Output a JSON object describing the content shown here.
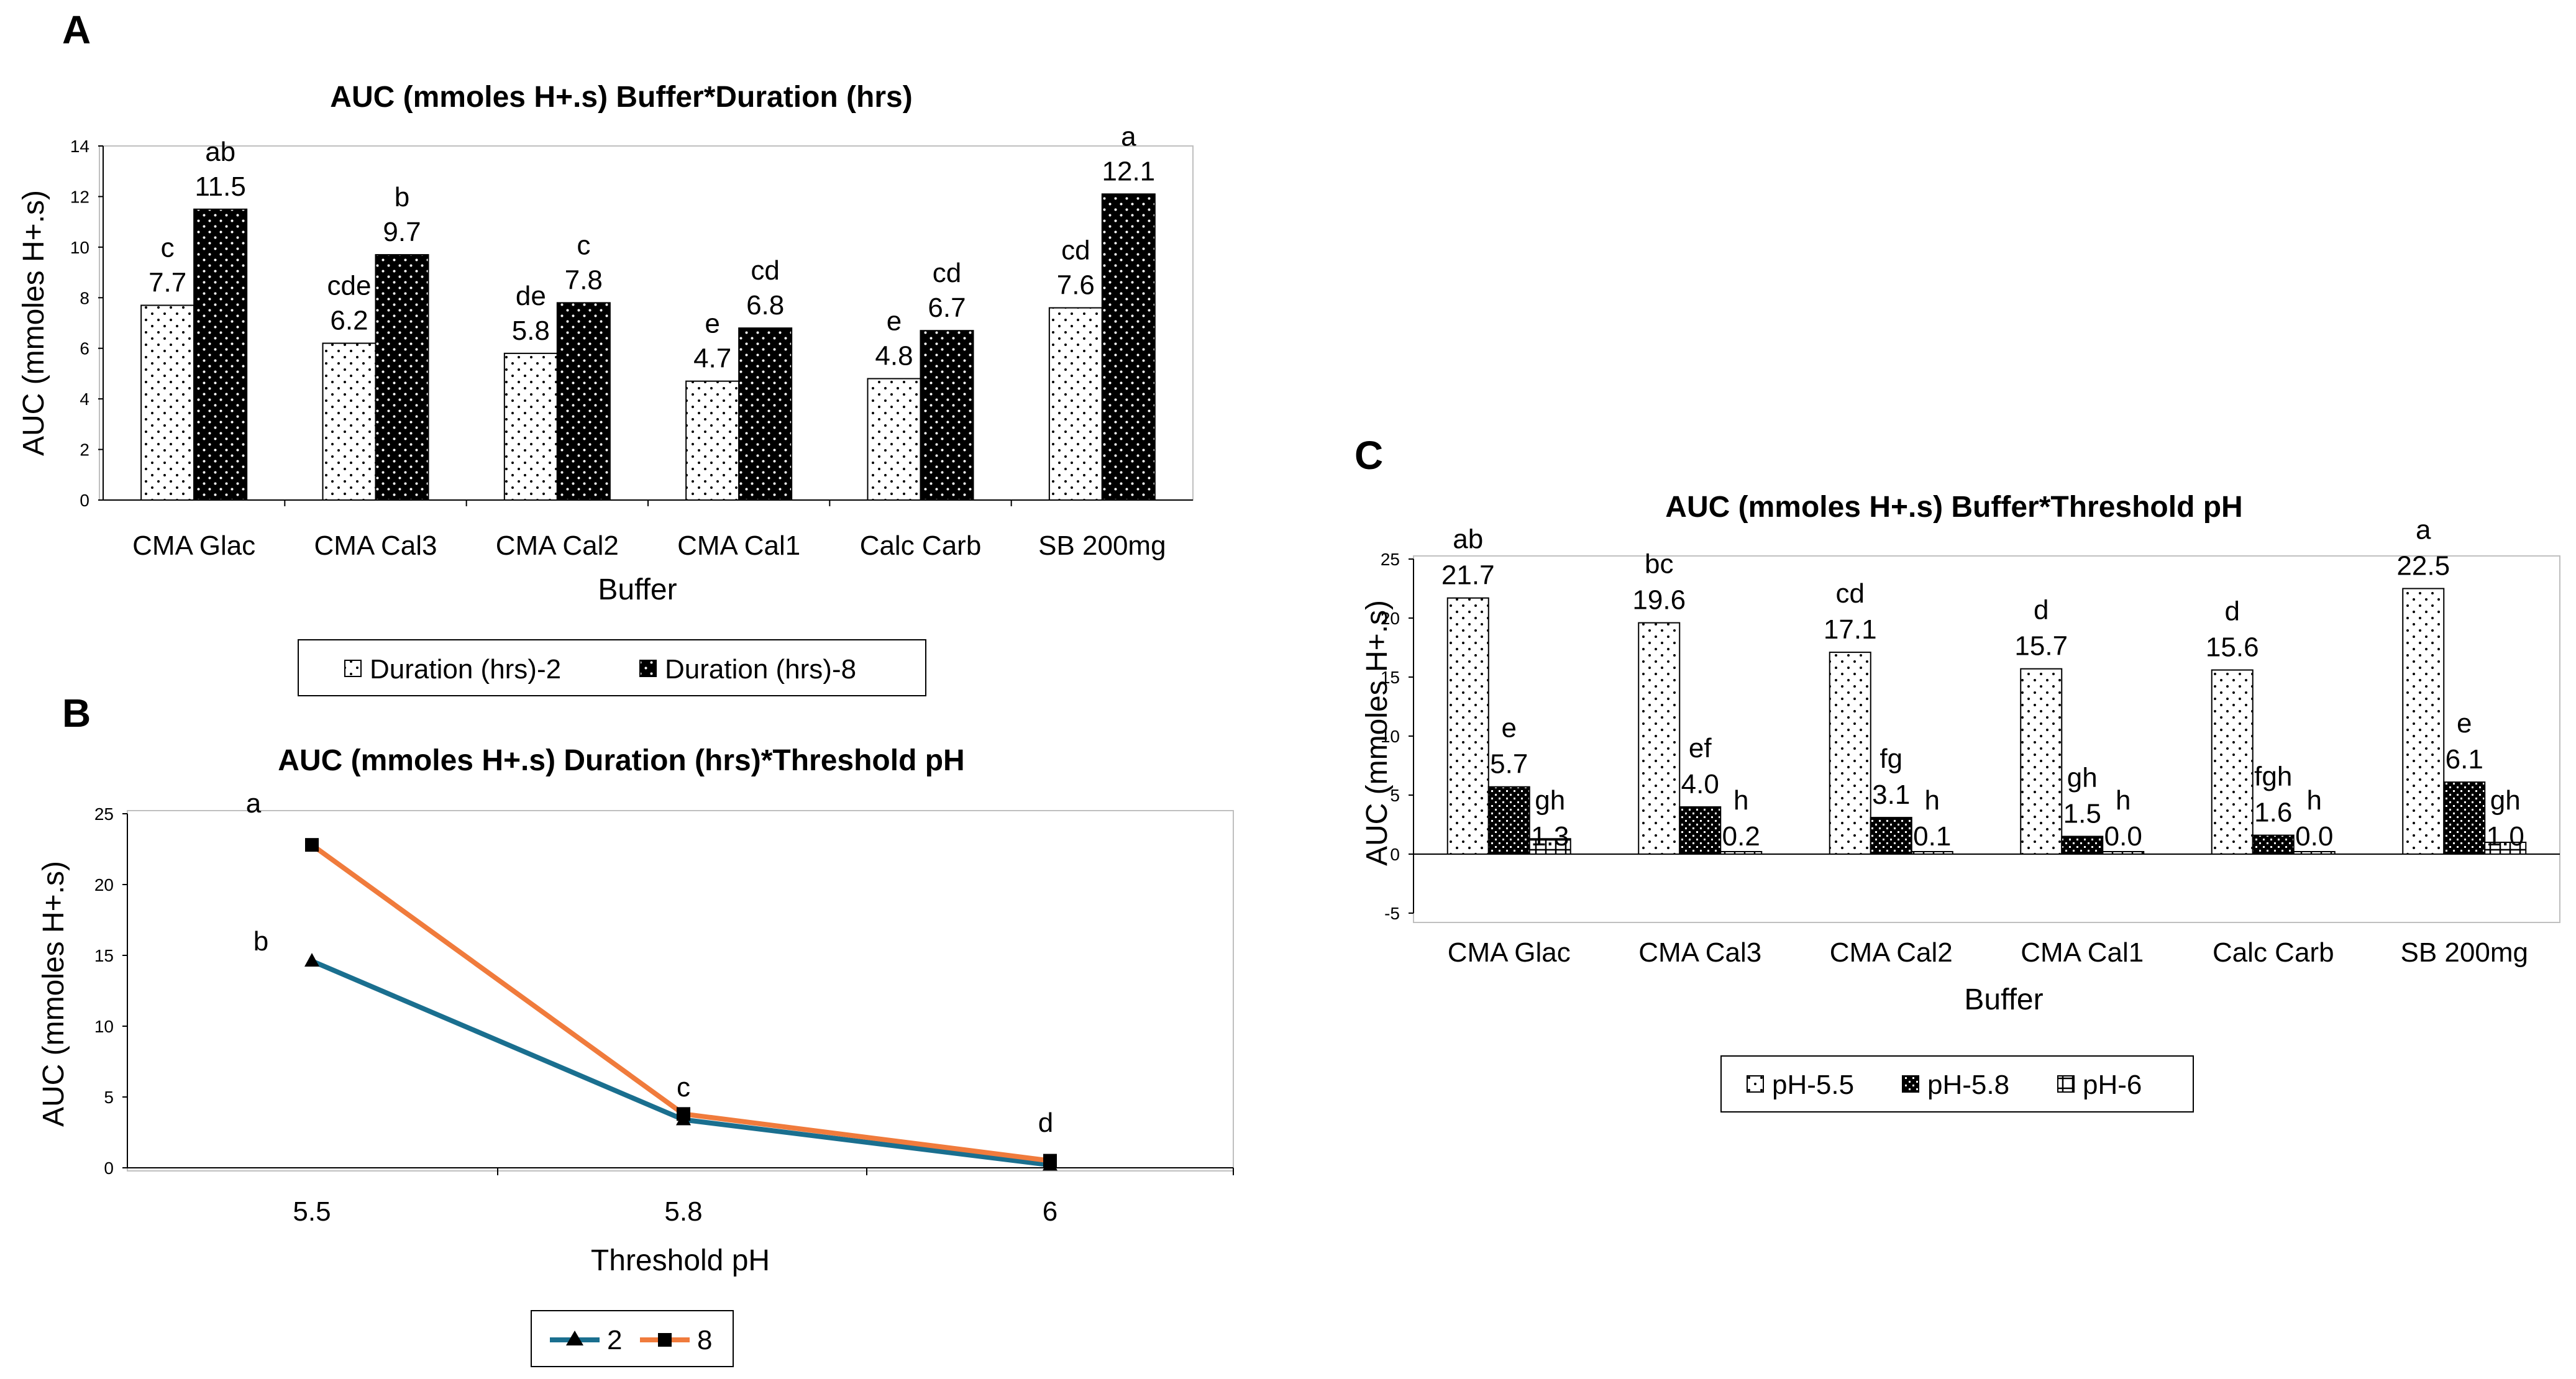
{
  "panels": {
    "a": "A",
    "b": "B",
    "c": "C"
  },
  "colors": {
    "series2h": "#1a6f8f",
    "series8h": "#f07b3c",
    "black": "#000000",
    "white": "#ffffff"
  },
  "chart_data": [
    {
      "id": "A",
      "type": "bar",
      "title": "AUC (mmoles H+.s) Buffer*Duration (hrs)",
      "xlabel": "Buffer",
      "ylabel": "AUC (mmoles H+.s)",
      "ylim": [
        0,
        14
      ],
      "yticks": [
        "0",
        "2",
        "4",
        "6",
        "8",
        "10",
        "12",
        "14"
      ],
      "categories": [
        "CMA Glac",
        "CMA Cal3",
        "CMA Cal2",
        "CMA Cal1",
        "Calc Carb",
        "SB 200mg"
      ],
      "series": [
        {
          "name": "Duration (hrs)-2",
          "pattern": "dots",
          "values": [
            7.7,
            6.2,
            5.8,
            4.7,
            4.8,
            7.6
          ],
          "labels": [
            "7.7",
            "6.2",
            "5.8",
            "4.7",
            "4.8",
            "7.6"
          ],
          "letters": [
            "c",
            "cde",
            "de",
            "e",
            "e",
            "cd"
          ]
        },
        {
          "name": "Duration (hrs)-8",
          "pattern": "solid-dots",
          "values": [
            11.5,
            9.7,
            7.8,
            6.8,
            6.7,
            12.1
          ],
          "labels": [
            "11.5",
            "9.7",
            "7.8",
            "6.8",
            "6.7",
            "12.1"
          ],
          "letters": [
            "ab",
            "b",
            "c",
            "cd",
            "cd",
            "a"
          ]
        }
      ]
    },
    {
      "id": "B",
      "type": "line",
      "title": "AUC (mmoles H+.s) Duration (hrs)*Threshold pH",
      "xlabel": "Threshold pH",
      "ylabel": "AUC (mmoles H+.s)",
      "ylim": [
        0,
        25
      ],
      "yticks": [
        "0",
        "5",
        "10",
        "15",
        "20",
        "25"
      ],
      "categories": [
        "5.5",
        "5.8",
        "6"
      ],
      "series": [
        {
          "name": "2",
          "marker": "triangle",
          "values": [
            14.6,
            3.4,
            0.2
          ]
        },
        {
          "name": "8",
          "marker": "square",
          "values": [
            22.8,
            3.8,
            0.5
          ]
        }
      ],
      "annotations": [
        "a",
        "b",
        "c",
        "d"
      ]
    },
    {
      "id": "C",
      "type": "bar",
      "title": "AUC (mmoles H+.s) Buffer*Threshold pH",
      "xlabel": "Buffer",
      "ylabel": "AUC (mmoles H+.s)",
      "ylim": [
        -5,
        25
      ],
      "yticks": [
        "-5",
        "0",
        "5",
        "10",
        "15",
        "20",
        "25"
      ],
      "categories": [
        "CMA Glac",
        "CMA Cal3",
        "CMA Cal2",
        "CMA Cal1",
        "Calc Carb",
        "SB 200mg"
      ],
      "series": [
        {
          "name": "pH-5.5",
          "pattern": "dots",
          "values": [
            21.7,
            19.6,
            17.1,
            15.7,
            15.6,
            22.5
          ],
          "labels": [
            "21.7",
            "19.6",
            "17.1",
            "15.7",
            "15.6",
            "22.5"
          ],
          "letters": [
            "ab",
            "bc",
            "cd",
            "d",
            "d",
            "a"
          ]
        },
        {
          "name": "pH-5.8",
          "pattern": "checker",
          "values": [
            5.7,
            4.0,
            3.1,
            1.5,
            1.6,
            6.1
          ],
          "labels": [
            "5.7",
            "4.0",
            "3.1",
            "1.5",
            "1.6",
            "6.1"
          ],
          "letters": [
            "e",
            "ef",
            "fg",
            "gh",
            "fgh",
            "e"
          ]
        },
        {
          "name": "pH-6",
          "pattern": "grid",
          "values": [
            1.3,
            0.2,
            0.1,
            0.0,
            0.0,
            1.0
          ],
          "labels": [
            "1.3",
            "0.2",
            "0.1",
            "0.0",
            "0.0",
            "1.0"
          ],
          "letters": [
            "gh",
            "h",
            "h",
            "h",
            "h",
            "gh"
          ]
        }
      ]
    }
  ]
}
